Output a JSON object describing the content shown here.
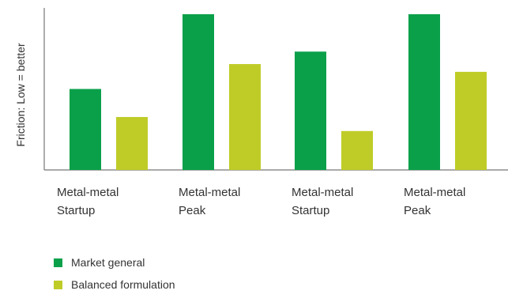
{
  "chart_data": {
    "type": "bar",
    "title": "",
    "xlabel": "",
    "ylabel": "Friction: Low = better",
    "categories": [
      [
        "Metal-metal",
        "Startup"
      ],
      [
        "Metal-metal",
        "Peak"
      ],
      [
        "Metal-metal",
        "Startup"
      ],
      [
        "Metal-metal",
        "Peak"
      ]
    ],
    "series": [
      {
        "name": "Market general",
        "color": "#0aa04a",
        "values": [
          52,
          100,
          76,
          100
        ]
      },
      {
        "name": "Balanced formulation",
        "color": "#bfcc28",
        "values": [
          34,
          68,
          25,
          63
        ]
      }
    ],
    "ylim": [
      0,
      100
    ],
    "y_ticks_visible": false,
    "grid": false,
    "legend_position": "bottom-left"
  }
}
